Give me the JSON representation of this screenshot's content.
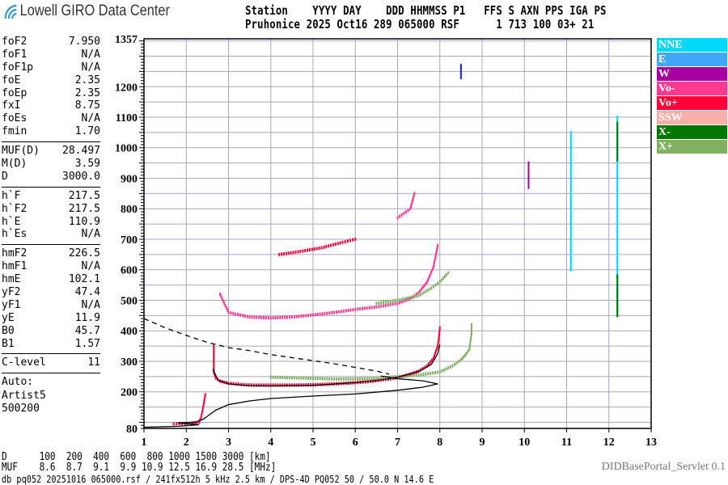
{
  "header": {
    "logo": "Lowell GIRO Data Center",
    "row1": "Station    YYYY DAY    DDD HHMMSS P1   FFS S AXN PPS IGA PS",
    "row2": "Pruhonice 2025 Oct16 289 065000 RSF      1 713 100 03+ 21"
  },
  "params": [
    [
      {
        "k": "foF2",
        "v": "7.950"
      },
      {
        "k": "foF1",
        "v": "N/A"
      },
      {
        "k": "foF1p",
        "v": "N/A"
      },
      {
        "k": "foE",
        "v": "2.35"
      },
      {
        "k": "foEp",
        "v": "2.35"
      },
      {
        "k": "fxI",
        "v": "8.75"
      },
      {
        "k": "foEs",
        "v": "N/A"
      },
      {
        "k": "fmin",
        "v": "1.70"
      }
    ],
    [
      {
        "k": "MUF(D)",
        "v": "28.497"
      },
      {
        "k": "M(D)",
        "v": "3.59"
      },
      {
        "k": "D",
        "v": "3000.0"
      }
    ],
    [
      {
        "k": "h`F",
        "v": "217.5"
      },
      {
        "k": "h`F2",
        "v": "217.5"
      },
      {
        "k": "h`E",
        "v": "110.9"
      },
      {
        "k": "h`Es",
        "v": "N/A"
      }
    ],
    [
      {
        "k": "hmF2",
        "v": "226.5"
      },
      {
        "k": "hmF1",
        "v": "N/A"
      },
      {
        "k": "hmE",
        "v": "102.1"
      },
      {
        "k": "yF2",
        "v": "47.4"
      },
      {
        "k": "yF1",
        "v": "N/A"
      },
      {
        "k": "yE",
        "v": "11.9"
      },
      {
        "k": "B0",
        "v": "45.7"
      },
      {
        "k": "B1",
        "v": "1.57"
      }
    ],
    [
      {
        "k": "C-level",
        "v": "11"
      }
    ]
  ],
  "auto": [
    "Auto:",
    "Artist5",
    "500200"
  ],
  "legend": [
    {
      "label": "NNE",
      "color": "#00d8f8"
    },
    {
      "label": "E",
      "color": "#40a8f8"
    },
    {
      "label": "W",
      "color": "#a800a0"
    },
    {
      "label": "Vo-",
      "color": "#ff3890"
    },
    {
      "label": "Vo+",
      "color": "#ff0038"
    },
    {
      "label": "SSW",
      "color": "#f8b0a8"
    },
    {
      "label": "X-",
      "color": "#007800"
    },
    {
      "label": "X+",
      "color": "#80b060"
    }
  ],
  "footer": {
    "d_row": "D      100  200  400  600  800 1000 1500 3000 [km]",
    "muf_row": "MUF    8.6  8.7  9.1  9.9 10.9 12.5 16.9 28.5 [MHz]",
    "info": "db pq052 20251016 065000.rsf / 241fx512h 5 kHz 2.5 km / DPS-4D PQ052 50 / 50.0 N 14.6 E",
    "servlet": "DIDBasePortal_Servlet 0.1"
  },
  "chart_data": {
    "type": "scatter",
    "xlim": [
      1,
      13
    ],
    "ylim": [
      80,
      1357
    ],
    "x_ticks": [
      "1",
      "2",
      "3",
      "4",
      "5",
      "6",
      "7",
      "8",
      "9",
      "10",
      "11",
      "12",
      "13"
    ],
    "y_ticks": [
      "80",
      "200",
      "300",
      "400",
      "500",
      "600",
      "700",
      "800",
      "900",
      "1000",
      "1100",
      "1200",
      "1357"
    ],
    "grid": true,
    "legend_placement": "right",
    "series": [
      {
        "name": "Vo+",
        "kind": "trace",
        "color": "#ff0038",
        "points": [
          [
            2.65,
            350
          ],
          [
            2.65,
            320
          ],
          [
            2.65,
            290
          ],
          [
            2.65,
            265
          ],
          [
            2.7,
            245
          ],
          [
            2.8,
            235
          ],
          [
            3,
            228
          ],
          [
            3.3,
            224
          ],
          [
            3.6,
            222
          ],
          [
            4,
            222
          ],
          [
            4.5,
            222
          ],
          [
            5,
            223
          ],
          [
            5.5,
            226
          ],
          [
            6,
            230
          ],
          [
            6.3,
            233
          ],
          [
            6.6,
            238
          ],
          [
            6.9,
            244
          ],
          [
            7.1,
            250
          ],
          [
            7.3,
            258
          ],
          [
            7.5,
            268
          ],
          [
            7.7,
            285
          ],
          [
            7.85,
            310
          ],
          [
            7.95,
            350
          ],
          [
            7.98,
            380
          ],
          [
            8.0,
            410
          ]
        ]
      },
      {
        "name": "Vo+",
        "kind": "trace",
        "color": "#ff0038",
        "points": [
          [
            1.7,
            95
          ],
          [
            1.9,
            96
          ],
          [
            2.1,
            97
          ],
          [
            2.3,
            100
          ],
          [
            2.35,
            115
          ],
          [
            2.4,
            150
          ],
          [
            2.45,
            190
          ]
        ]
      },
      {
        "name": "X+",
        "kind": "trace",
        "color": "#80b060",
        "points": [
          [
            4,
            248
          ],
          [
            4.5,
            246
          ],
          [
            5,
            244
          ],
          [
            5.5,
            242
          ],
          [
            6,
            242
          ],
          [
            6.5,
            244
          ],
          [
            7,
            250
          ],
          [
            7.5,
            255
          ],
          [
            8,
            265
          ],
          [
            8.3,
            285
          ],
          [
            8.5,
            305
          ],
          [
            8.6,
            320
          ],
          [
            8.7,
            340
          ],
          [
            8.75,
            390
          ],
          [
            8.75,
            420
          ]
        ]
      },
      {
        "name": "Vo-",
        "kind": "trace",
        "color": "#ff3890",
        "points": [
          [
            2.8,
            520
          ],
          [
            3.0,
            460
          ],
          [
            3.5,
            445
          ],
          [
            4,
            442
          ],
          [
            4.5,
            445
          ],
          [
            5,
            452
          ],
          [
            5.5,
            460
          ],
          [
            6,
            470
          ],
          [
            6.5,
            478
          ],
          [
            7,
            490
          ],
          [
            7.3,
            505
          ],
          [
            7.5,
            525
          ],
          [
            7.7,
            560
          ],
          [
            7.85,
            610
          ],
          [
            7.95,
            680
          ]
        ]
      },
      {
        "name": "X+",
        "kind": "trace",
        "color": "#80b060",
        "points": [
          [
            6.5,
            490
          ],
          [
            7,
            500
          ],
          [
            7.5,
            515
          ],
          [
            7.8,
            540
          ],
          [
            8.0,
            560
          ],
          [
            8.2,
            590
          ]
        ]
      },
      {
        "name": "Vo+",
        "kind": "trace",
        "color": "#ff0038",
        "points": [
          [
            4.2,
            650
          ],
          [
            4.7,
            660
          ],
          [
            5.2,
            672
          ],
          [
            5.7,
            690
          ],
          [
            6.0,
            700
          ]
        ]
      },
      {
        "name": "Vo-",
        "kind": "trace",
        "color": "#ff3890",
        "points": [
          [
            7.0,
            770
          ],
          [
            7.3,
            800
          ],
          [
            7.4,
            850
          ]
        ]
      },
      {
        "name": "E",
        "kind": "trace",
        "color": "#2020e0",
        "points": [
          [
            8.5,
            1230
          ],
          [
            8.5,
            1270
          ]
        ]
      },
      {
        "name": "W",
        "kind": "trace",
        "color": "#a800a0",
        "points": [
          [
            10.1,
            870
          ],
          [
            10.1,
            950
          ]
        ]
      },
      {
        "name": "NNE",
        "kind": "trace",
        "color": "#00d8f8",
        "points": [
          [
            11.1,
            600
          ],
          [
            11.1,
            1050
          ]
        ]
      },
      {
        "name": "NNE",
        "kind": "trace",
        "color": "#00d8f8",
        "points": [
          [
            12.2,
            450
          ],
          [
            12.2,
            1100
          ]
        ]
      },
      {
        "name": "X-",
        "kind": "trace",
        "color": "#007800",
        "points": [
          [
            12.2,
            450
          ],
          [
            12.2,
            580
          ]
        ]
      },
      {
        "name": "X-",
        "kind": "trace",
        "color": "#007800",
        "points": [
          [
            12.2,
            960
          ],
          [
            12.2,
            1080
          ]
        ]
      }
    ],
    "lines": [
      {
        "kind": "profile",
        "style": "solid",
        "color": "#000000",
        "points": [
          [
            1,
            84
          ],
          [
            1.8,
            87
          ],
          [
            2.3,
            92
          ],
          [
            1.8,
            98
          ],
          [
            2.2,
            100
          ],
          [
            2.4,
            110
          ],
          [
            2.7,
            140
          ],
          [
            3,
            158
          ],
          [
            3.5,
            170
          ],
          [
            4,
            178
          ],
          [
            5,
            186
          ],
          [
            6,
            193
          ],
          [
            7,
            205
          ],
          [
            7.6,
            215
          ],
          [
            7.95,
            226
          ],
          [
            7.6,
            236
          ],
          [
            7,
            243
          ],
          [
            6.6,
            252
          ]
        ]
      },
      {
        "kind": "fit",
        "style": "solid",
        "color": "#000000",
        "points": [
          [
            2.63,
            275
          ],
          [
            2.75,
            238
          ],
          [
            3,
            226
          ],
          [
            3.5,
            220
          ],
          [
            4,
            219
          ],
          [
            5,
            221
          ],
          [
            6,
            230
          ],
          [
            6.5,
            237
          ],
          [
            7,
            248
          ],
          [
            7.5,
            266
          ],
          [
            7.8,
            290
          ],
          [
            7.95,
            325
          ],
          [
            8.0,
            355
          ]
        ]
      },
      {
        "kind": "dashed",
        "style": "dashed",
        "color": "#000000",
        "points": [
          [
            1,
            440
          ],
          [
            1.5,
            410
          ],
          [
            2,
            385
          ],
          [
            2.5,
            362
          ],
          [
            3,
            345
          ],
          [
            3.5,
            335
          ],
          [
            4,
            322
          ],
          [
            4.5,
            312
          ],
          [
            5,
            302
          ],
          [
            5.5,
            292
          ],
          [
            6,
            280
          ],
          [
            6.5,
            268
          ],
          [
            6.8,
            258
          ]
        ]
      }
    ]
  }
}
